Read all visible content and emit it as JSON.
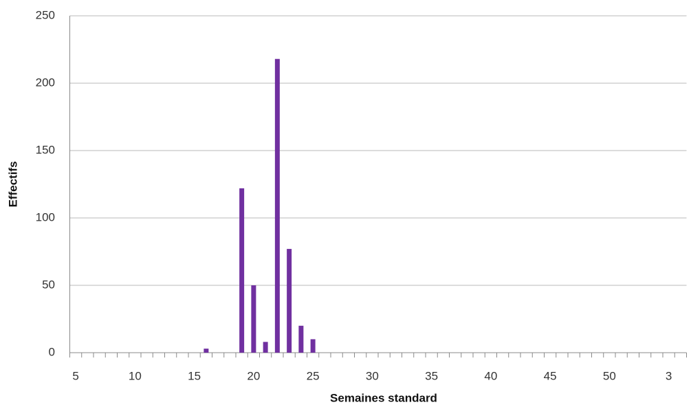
{
  "chart_data": {
    "type": "bar",
    "x_label": "Semaines standard",
    "y_label": "Effectifs",
    "categories": [
      "5",
      null,
      null,
      null,
      null,
      "10",
      null,
      null,
      null,
      null,
      "15",
      null,
      null,
      null,
      null,
      "20",
      null,
      null,
      null,
      null,
      "25",
      null,
      null,
      null,
      null,
      "30",
      null,
      null,
      null,
      null,
      "35",
      null,
      null,
      null,
      null,
      "40",
      null,
      null,
      null,
      null,
      "45",
      null,
      null,
      null,
      null,
      "50",
      null,
      null,
      null,
      null,
      "3",
      null
    ],
    "values": [
      0,
      0,
      0,
      0,
      0,
      0,
      0,
      0,
      0,
      0,
      0,
      3,
      0,
      0,
      122,
      50,
      8,
      218,
      77,
      20,
      10,
      0,
      0,
      0,
      0,
      0,
      0,
      0,
      0,
      0,
      0,
      0,
      0,
      0,
      0,
      0,
      0,
      0,
      0,
      0,
      0,
      0,
      0,
      0,
      0,
      0,
      0,
      0,
      0,
      0,
      0,
      0
    ],
    "color": "#7030a0",
    "ylim": [
      0,
      250
    ],
    "yticks": [
      0,
      50,
      100,
      150,
      200,
      250
    ],
    "grid": true
  }
}
